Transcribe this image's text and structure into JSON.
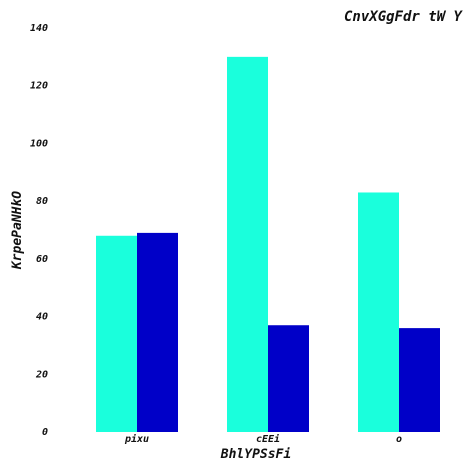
{
  "chart_data": {
    "type": "bar",
    "title": "CnvXGgFdr tW Y",
    "xlabel": "BhlYPSsFi",
    "ylabel": "KrpePaNHkO",
    "categories": [
      "pixu",
      "cEEi",
      "o"
    ],
    "series": [
      {
        "values": [
          68,
          130,
          83
        ],
        "color": "#1affdc"
      },
      {
        "values": [
          69,
          37,
          36
        ],
        "color": "#0000c8"
      }
    ],
    "ylim": [
      0,
      140
    ],
    "yticks": [
      0,
      20,
      40,
      60,
      80,
      100,
      120,
      140
    ],
    "grid": false
  }
}
